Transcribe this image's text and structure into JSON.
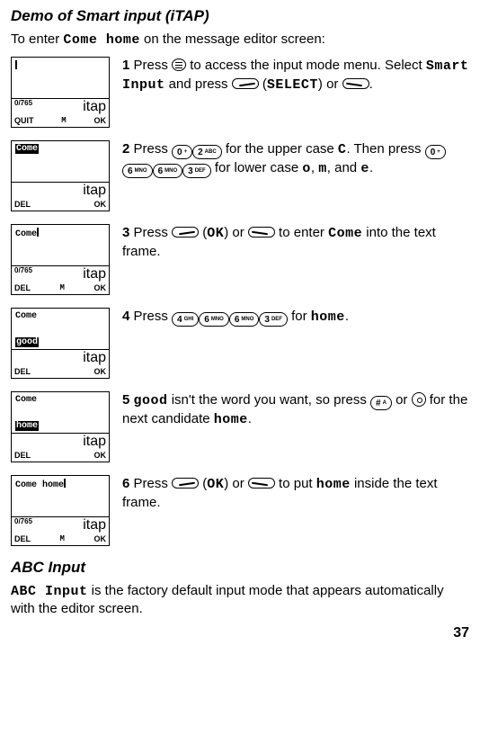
{
  "heading1": "Demo of Smart input (iTAP)",
  "intro_prefix": "To enter ",
  "intro_mono": "Come home",
  "intro_suffix": " on the message editor screen:",
  "steps": [
    {
      "num": "1",
      "phone": {
        "line1": "",
        "counter": "0/765",
        "left": "QUIT",
        "mid": "M",
        "right": "OK",
        "itap": "itap",
        "cursor_only": true
      },
      "text_parts": [
        {
          "t": "Press "
        },
        {
          "menukey": true
        },
        {
          "t": " to access the input mode menu. Select "
        },
        {
          "mono": "Smart Input"
        },
        {
          "t": " and press "
        },
        {
          "softkey": "left"
        },
        {
          "t": " ("
        },
        {
          "mono": "SELECT"
        },
        {
          "t": ") or "
        },
        {
          "softkey": "right"
        },
        {
          "t": "."
        }
      ]
    },
    {
      "num": "2",
      "phone": {
        "line1_hl": "Come",
        "left": "DEL",
        "right": "OK",
        "itap": "itap"
      },
      "text_parts": [
        {
          "t": "Press "
        },
        {
          "key": "0",
          "sub": "+"
        },
        {
          "key": "2",
          "sub": "ABC"
        },
        {
          "t": " for the upper case "
        },
        {
          "mono": "C"
        },
        {
          "t": ". Then press "
        },
        {
          "key": "0",
          "sub": "+"
        },
        {
          "key": "6",
          "sub": "MNO"
        },
        {
          "key": "6",
          "sub": "MNO"
        },
        {
          "key": "3",
          "sub": "DEF"
        },
        {
          "t": " for lower case "
        },
        {
          "mono": "o"
        },
        {
          "t": ", "
        },
        {
          "mono": "m"
        },
        {
          "t": ", and "
        },
        {
          "mono": "e"
        },
        {
          "t": "."
        }
      ]
    },
    {
      "num": "3",
      "phone": {
        "line1_plain": "Come",
        "cursor_after": true,
        "counter": "0/765",
        "left": "DEL",
        "mid": "M",
        "right": "OK",
        "itap": "itap"
      },
      "text_parts": [
        {
          "t": "Press "
        },
        {
          "softkey": "left"
        },
        {
          "t": " ("
        },
        {
          "mono": "OK"
        },
        {
          "t": ") or "
        },
        {
          "softkey": "right"
        },
        {
          "t": " to enter "
        },
        {
          "mono": "Come"
        },
        {
          "t": " into the text frame."
        }
      ]
    },
    {
      "num": "4",
      "phone": {
        "line1_plain": "Come",
        "line2_hl": "good",
        "left": "DEL",
        "right": "OK",
        "itap": "itap"
      },
      "text_parts": [
        {
          "t": "Press "
        },
        {
          "key": "4",
          "sub": "GHI"
        },
        {
          "key": "6",
          "sub": "MNO"
        },
        {
          "key": "6",
          "sub": "MNO"
        },
        {
          "key": "3",
          "sub": "DEF"
        },
        {
          "t": " for "
        },
        {
          "mono": "home"
        },
        {
          "t": "."
        }
      ]
    },
    {
      "num": "5",
      "phone": {
        "line1_plain": "Come",
        "line2_hl": "home",
        "left": "DEL",
        "right": "OK",
        "itap": "itap"
      },
      "text_parts": [
        {
          "mono": "good"
        },
        {
          "t": " isn't the word you want, so press "
        },
        {
          "key": "#",
          "sub": "A"
        },
        {
          "t": " or "
        },
        {
          "navkey": true
        },
        {
          "t": " for the next candidate "
        },
        {
          "mono": "home"
        },
        {
          "t": "."
        }
      ]
    },
    {
      "num": "6",
      "phone": {
        "line1_plain": "Come home",
        "cursor_after": true,
        "counter": "0/765",
        "left": "DEL",
        "mid": "M",
        "right": "OK",
        "itap": "itap"
      },
      "text_parts": [
        {
          "t": "Press "
        },
        {
          "softkey": "left"
        },
        {
          "t": " ("
        },
        {
          "mono": "OK"
        },
        {
          "t": ") or "
        },
        {
          "softkey": "right"
        },
        {
          "t": " to put "
        },
        {
          "mono": "home"
        },
        {
          "t": " inside the text frame."
        }
      ]
    }
  ],
  "heading2": "ABC Input",
  "abc_mono": "ABC Input",
  "abc_suffix": " is the factory default input mode that appears automatically with the editor screen.",
  "pagenum": "37"
}
